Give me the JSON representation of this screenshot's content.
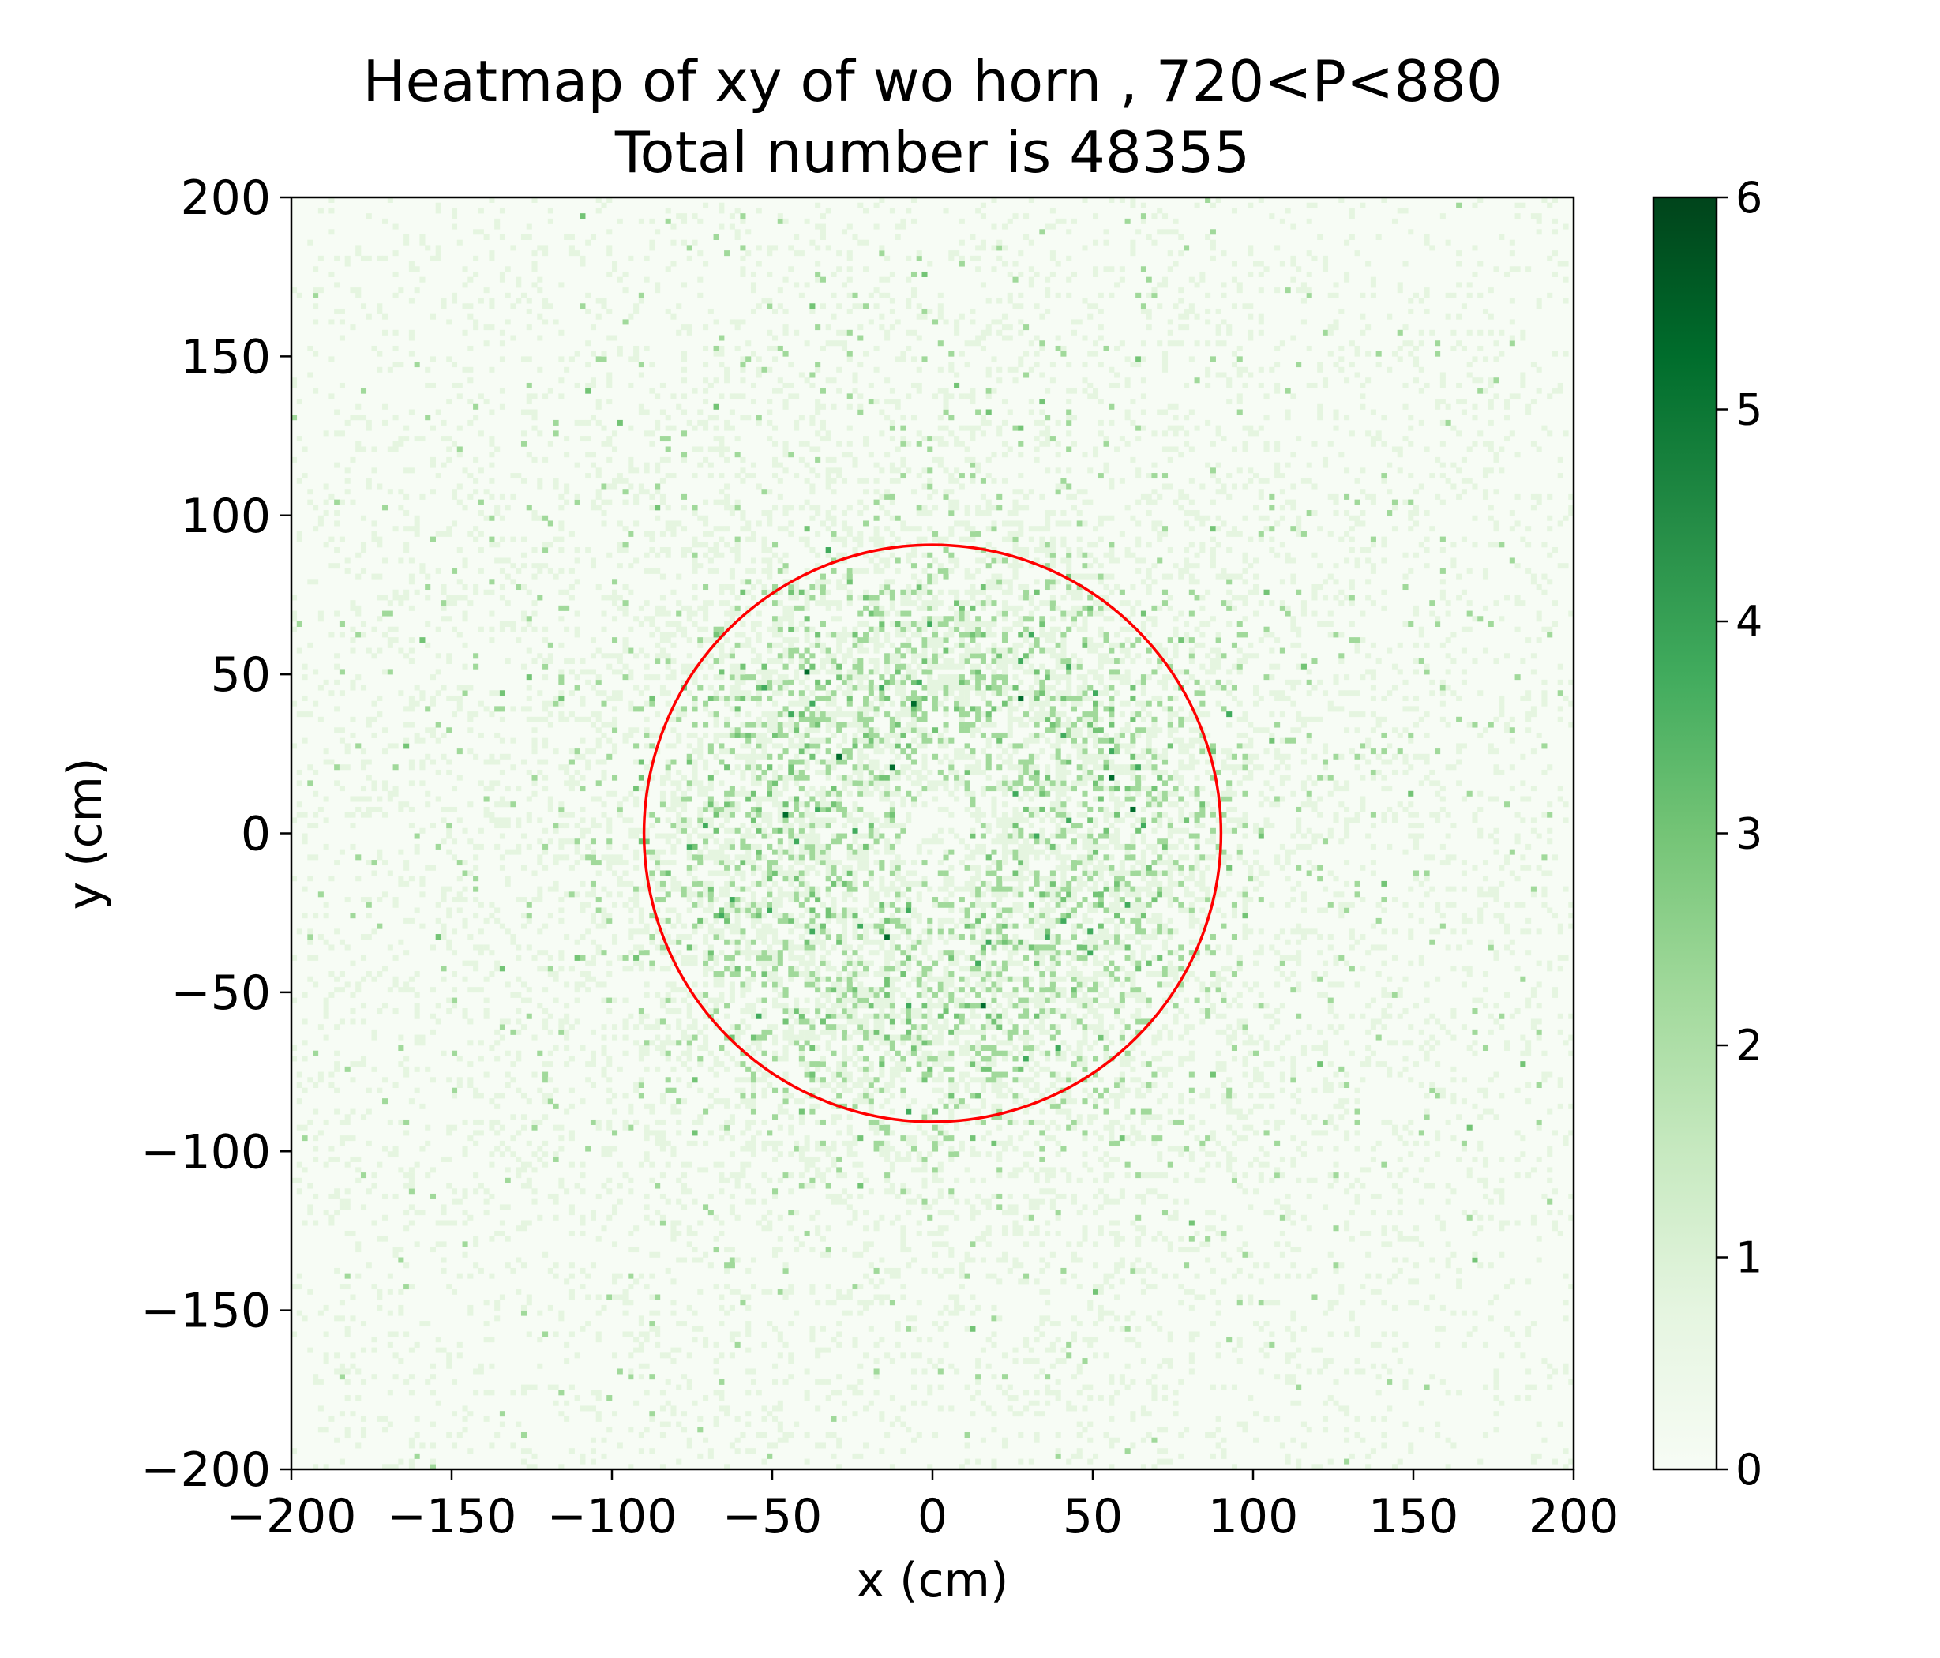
{
  "chart_data": {
    "type": "heatmap",
    "title_line1": "Heatmap of xy of wo horn , 720<P<880",
    "title_line2": "Total number is 48355",
    "xlabel": "x (cm)",
    "ylabel": "y (cm)",
    "xlim": [
      -200,
      200
    ],
    "ylim": [
      -200,
      200
    ],
    "x_ticks": [
      -200,
      -150,
      -100,
      -50,
      0,
      50,
      100,
      150,
      200
    ],
    "y_ticks": [
      -200,
      -150,
      -100,
      -50,
      0,
      50,
      100,
      150,
      200
    ],
    "x_tick_labels": [
      "−200",
      "−150",
      "−100",
      "−50",
      "0",
      "50",
      "100",
      "150",
      "200"
    ],
    "y_tick_labels": [
      "−200",
      "−150",
      "−100",
      "−50",
      "0",
      "50",
      "100",
      "150",
      "200"
    ],
    "colorbar": {
      "cmap": "Greens",
      "range": [
        0,
        6
      ],
      "ticks": [
        0,
        1,
        2,
        3,
        4,
        5,
        6
      ],
      "tick_labels": [
        "0",
        "1",
        "2",
        "3",
        "4",
        "5",
        "6"
      ],
      "color_low": "#f7fcf5",
      "color_high": "#00441b"
    },
    "distribution": {
      "description_values": "per-cell counts, densest in annulus radius ~30-80 cm, lighter toward edges",
      "total": 48355
    },
    "overlay_circle": {
      "center": [
        0,
        0
      ],
      "radius": 90,
      "color": "#ff0000"
    }
  }
}
